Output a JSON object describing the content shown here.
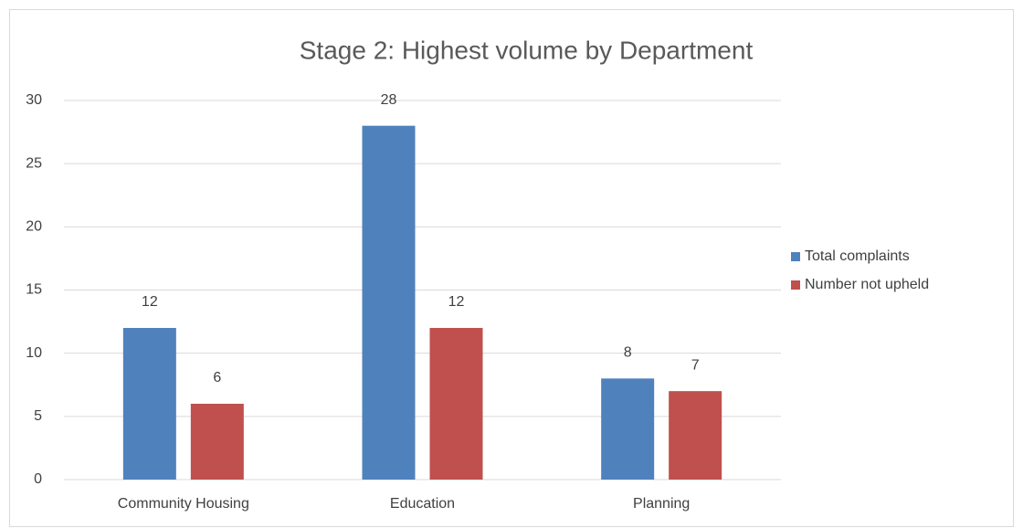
{
  "chart_data": {
    "type": "bar",
    "title": "Stage 2: Highest volume by Department",
    "categories": [
      "Community Housing",
      "Education",
      "Planning"
    ],
    "series": [
      {
        "name": "Total complaints",
        "color": "#4f81bd",
        "values": [
          12,
          28,
          8
        ]
      },
      {
        "name": "Number not upheld",
        "color": "#c0504d",
        "values": [
          6,
          12,
          7
        ]
      }
    ],
    "ylim": [
      0,
      30
    ],
    "yticks": [
      0,
      5,
      10,
      15,
      20,
      25,
      30
    ],
    "grid": true,
    "legend": "right",
    "data_labels": true
  }
}
